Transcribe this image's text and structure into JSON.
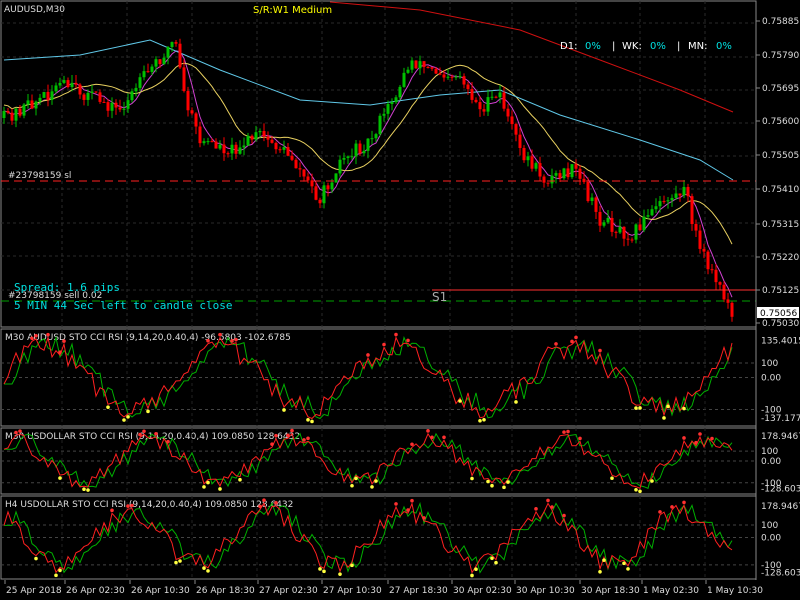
{
  "main": {
    "symbol_label": "AUDUSD,M30",
    "sr_label": "S/R:W1 Medium",
    "stats": {
      "d1_label": "D1:",
      "d1": "0%",
      "wk_label": "WK:",
      "wk": "0%",
      "mn_label": "MN:",
      "mn": "0%"
    },
    "order_sl_label": "#23798159 sl",
    "order_sell_label": "#23798159 sell 0.02",
    "s1_label": "S1",
    "spread_text": "Spread: 1.6 pips",
    "timer_text": "5 MIN 44 Sec left to candle close",
    "price_ticks": [
      "0.75885",
      "0.75790",
      "0.75695",
      "0.75600",
      "0.75505",
      "0.75410",
      "0.75315",
      "0.75220",
      "0.75125",
      "0.75056",
      "0.75030"
    ]
  },
  "indicators": [
    {
      "label": "M30 AUDUSD STO CCI RSI (9,14,20,0.40,4) -96.5803 -102.6785",
      "ticks": [
        "135.4015",
        "100",
        "0.00",
        "-100",
        "-137.1778"
      ]
    },
    {
      "label": "M30 USDOLLAR STO CCI RSI (9,14,20,0.40,4) 109.0850 128.6432",
      "ticks": [
        "178.9467",
        "100",
        "0.00",
        "-100",
        "-128.6033"
      ]
    },
    {
      "label": "H4 USDOLLAR STO CCI RSI (9,14,20,0.40,4) 109.0850 128.6432",
      "ticks": [
        "178.9467",
        "100",
        "0.00",
        "-100",
        "-128.6033"
      ]
    }
  ],
  "time_axis": [
    "25 Apr 2018",
    "26 Apr 02:30",
    "26 Apr 10:30",
    "26 Apr 18:30",
    "27 Apr 02:30",
    "27 Apr 10:30",
    "27 Apr 18:30",
    "30 Apr 02:30",
    "30 Apr 10:30",
    "30 Apr 18:30",
    "1 May 02:30",
    "1 May 10:30"
  ],
  "colors": {
    "bull": "#00c000",
    "bear": "#ff0000",
    "ma_fast": "#d040d0",
    "ma_mid": "#e8d060",
    "ma_slow": "#60c8e8",
    "ma_long": "#d01010",
    "spread_text": "#00e0e0",
    "stats_text": "#ffffff",
    "sr_text": "#ffff00",
    "price_box": "#ffffff"
  }
}
